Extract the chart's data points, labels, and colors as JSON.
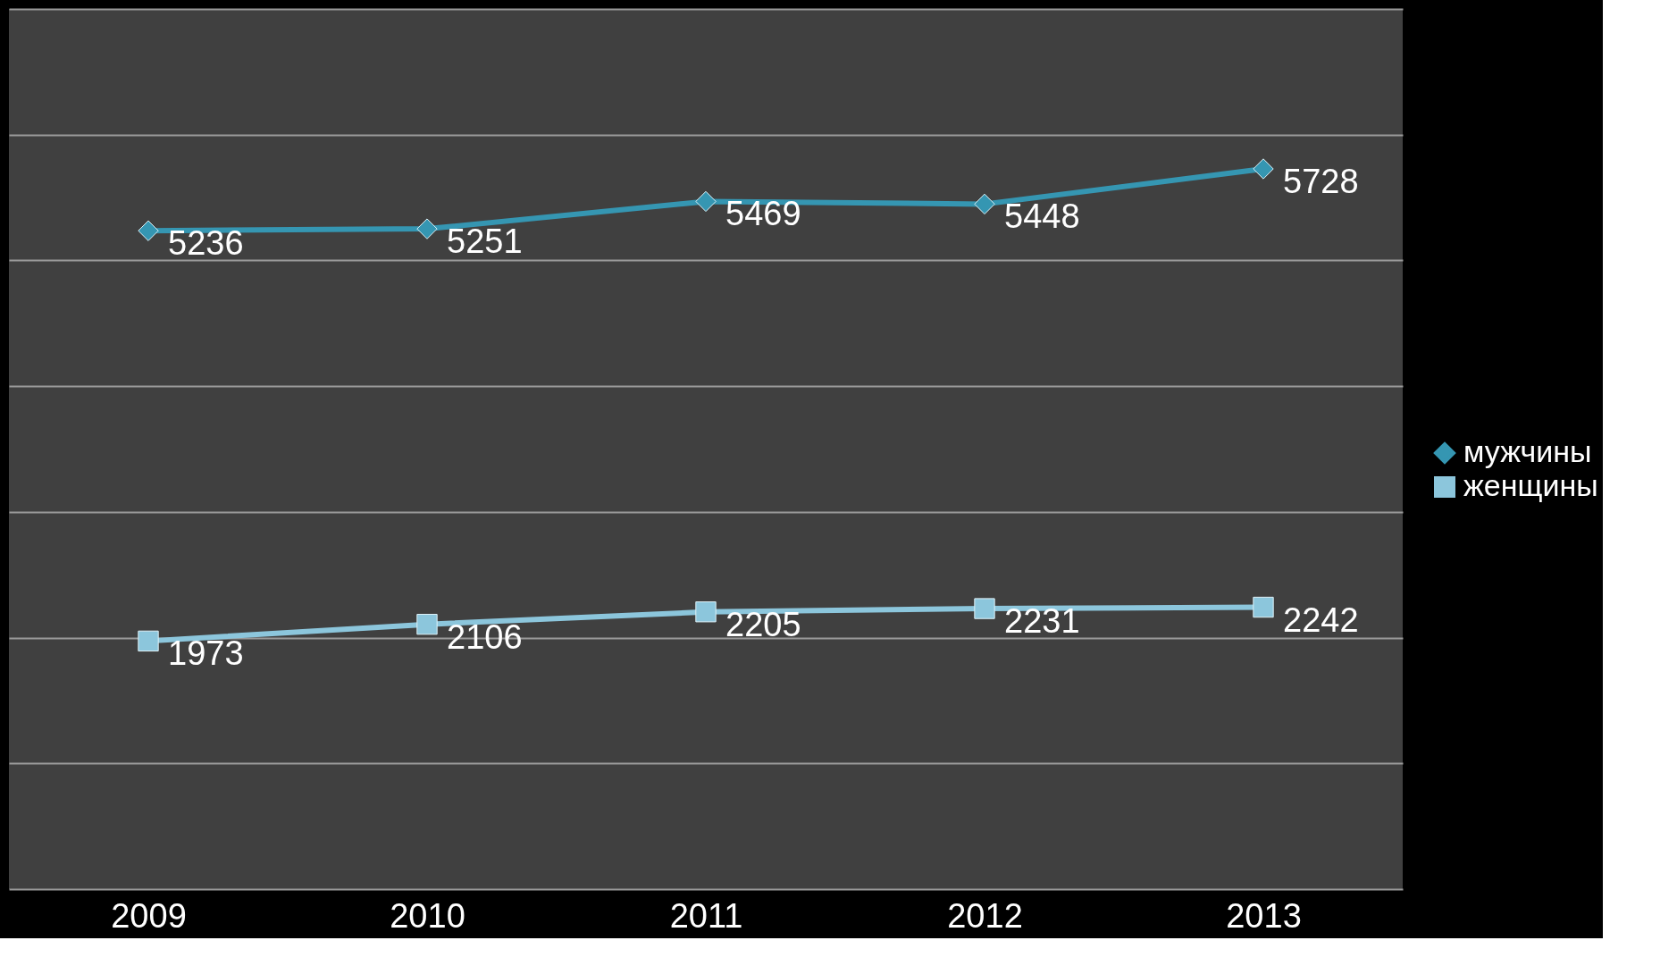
{
  "chart_data": {
    "type": "line",
    "categories": [
      "2009",
      "2010",
      "2011",
      "2012",
      "2013"
    ],
    "series": [
      {
        "name": "мужчины",
        "color": "#3596b2",
        "marker": "diamond",
        "values": [
          5236,
          5251,
          5469,
          5448,
          5728
        ]
      },
      {
        "name": "женщины",
        "color": "#8cc6dc",
        "marker": "square",
        "values": [
          1973,
          2106,
          2205,
          2231,
          2242
        ]
      }
    ],
    "ylim": [
      0,
      7000
    ],
    "yticks": [
      {
        "value": 0,
        "label": null
      },
      {
        "value": 1000,
        "label": null
      },
      {
        "value": 2000,
        "label": null
      },
      {
        "value": 3000,
        "label": null
      },
      {
        "value": 4000,
        "label": null
      },
      {
        "value": 5000,
        "label": null
      },
      {
        "value": 6000,
        "label": null
      },
      {
        "value": 7000,
        "label": null
      }
    ],
    "tick_labels": "x",
    "grid": "y",
    "legend": "right",
    "data_labels": true,
    "line_style": "solid"
  }
}
